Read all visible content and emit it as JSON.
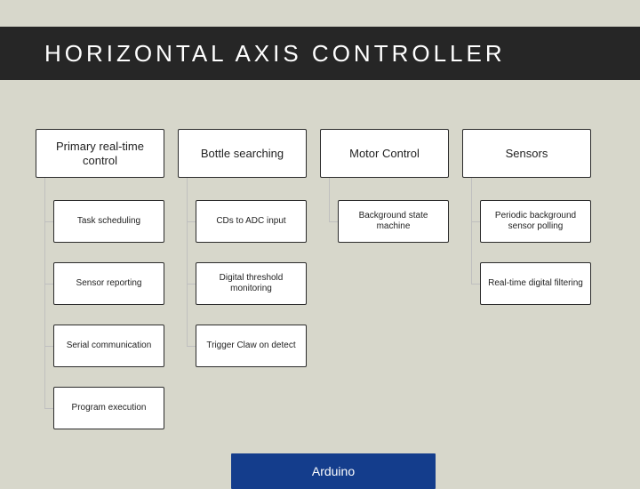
{
  "diagram": {
    "type": "tree",
    "title": "HORIZONTAL AXIS CONTROLLER",
    "background_color": "#d7d7cb",
    "title_band_color": "#262626",
    "title_text_color": "#ffffff",
    "title_fontsize": 26,
    "title_letter_spacing": 4,
    "box_bg": "#ffffff",
    "box_border": "#2b2b2b",
    "connector_color": "#bfbfbf",
    "header_fontsize": 13,
    "child_fontsize": 10,
    "columns": [
      {
        "header": "Primary real-time control",
        "children": [
          "Task scheduling",
          "Sensor reporting",
          "Serial communication",
          "Program execution"
        ]
      },
      {
        "header": "Bottle searching",
        "children": [
          "CDs to ADC input",
          "Digital threshold monitoring",
          "Trigger Claw on detect"
        ]
      },
      {
        "header": "Motor Control",
        "children": [
          "Background state machine"
        ]
      },
      {
        "header": "Sensors",
        "children": [
          "Periodic background sensor polling",
          "Real-time digital filtering"
        ]
      }
    ],
    "footer_box": {
      "label": "Arduino",
      "bg": "#143d8c",
      "text_color": "#ffffff",
      "fontsize": 14
    }
  }
}
